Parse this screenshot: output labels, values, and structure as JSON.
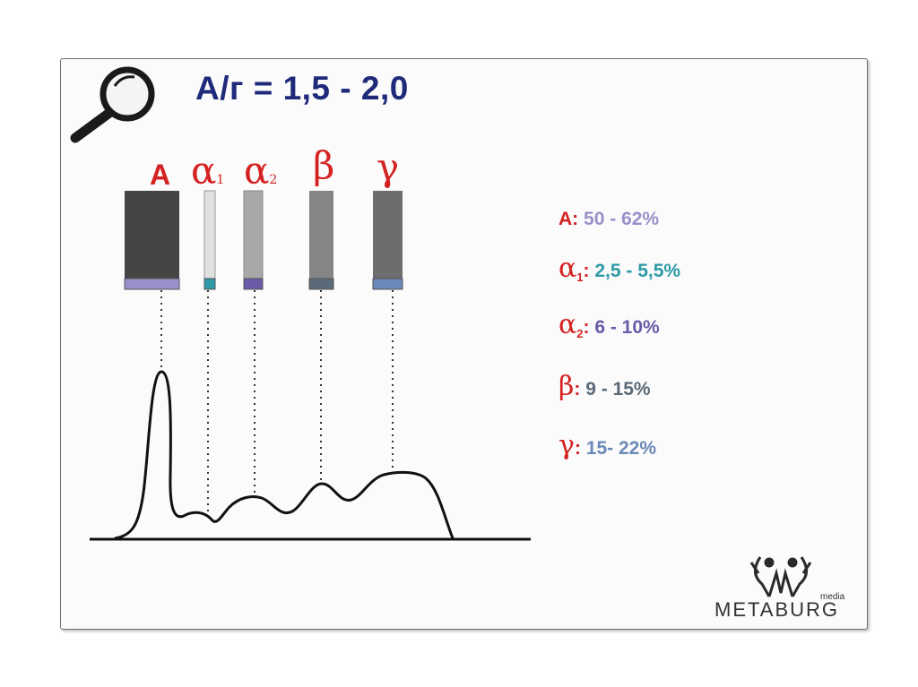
{
  "title": "А/г = 1,5 - 2,0",
  "bands": [
    {
      "label": "А",
      "sub": ""
    },
    {
      "label": "α",
      "sub": "1"
    },
    {
      "label": "α",
      "sub": "2"
    },
    {
      "label": "β",
      "sub": ""
    },
    {
      "label": "γ",
      "sub": ""
    }
  ],
  "legend": [
    {
      "symbol": "А",
      "sub": "",
      "range": "50 - 62%",
      "color": "#9a8fc8"
    },
    {
      "symbol": "α",
      "sub": "1",
      "range": "2,5 - 5,5%",
      "color": "#2e9aa8"
    },
    {
      "symbol": "α",
      "sub": "2",
      "range": "6 - 10%",
      "color": "#6a5aa8"
    },
    {
      "symbol": "β",
      "sub": "",
      "range": "9 - 15%",
      "color": "#5a6a78"
    },
    {
      "symbol": "γ",
      "sub": "",
      "range": "15- 22%",
      "color": "#6a88b8"
    }
  ],
  "logo": {
    "name": "METABURG",
    "tag": "media"
  },
  "colors": {
    "label_red": "#d42222",
    "title_blue": "#1f2a7a"
  },
  "icons": {
    "search": "magnifier-icon",
    "logo": "metaburg-logo-icon"
  }
}
